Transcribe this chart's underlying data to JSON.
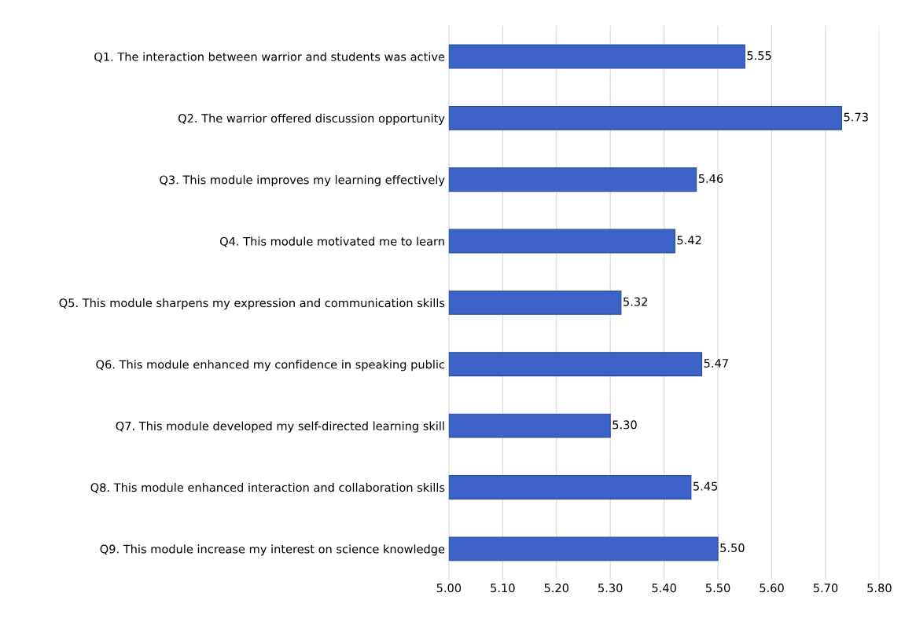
{
  "chart_data": {
    "type": "bar",
    "orientation": "horizontal",
    "categories": [
      "Q1. The interaction between warrior and students was active",
      "Q2. The warrior offered discussion opportunity",
      "Q3. This module improves my learning effectively",
      "Q4. This module motivated me to learn",
      "Q5. This module sharpens my expression and communication skills",
      "Q6. This module enhanced my confidence in speaking public",
      "Q7. This module developed my self-directed learning skill",
      "Q8. This module enhanced interaction and collaboration skills",
      "Q9. This module increase my interest on science knowledge"
    ],
    "values": [
      5.55,
      5.73,
      5.46,
      5.42,
      5.32,
      5.47,
      5.3,
      5.45,
      5.5
    ],
    "value_labels": [
      "5.55",
      "5.73",
      "5.46",
      "5.42",
      "5.32",
      "5.47",
      "5.30",
      "5.45",
      "5.50"
    ],
    "color": "#3c62c8",
    "xlim": [
      5.0,
      5.8
    ],
    "xticks": [
      {
        "value": 5.0,
        "label": "5.00"
      },
      {
        "value": 5.1,
        "label": "5.10"
      },
      {
        "value": 5.2,
        "label": "5.20"
      },
      {
        "value": 5.3,
        "label": "5.30"
      },
      {
        "value": 5.4,
        "label": "5.40"
      },
      {
        "value": 5.5,
        "label": "5.50"
      },
      {
        "value": 5.6,
        "label": "5.60"
      },
      {
        "value": 5.7,
        "label": "5.70"
      },
      {
        "value": 5.8,
        "label": "5.80"
      }
    ],
    "grid": "x",
    "legend": false
  }
}
